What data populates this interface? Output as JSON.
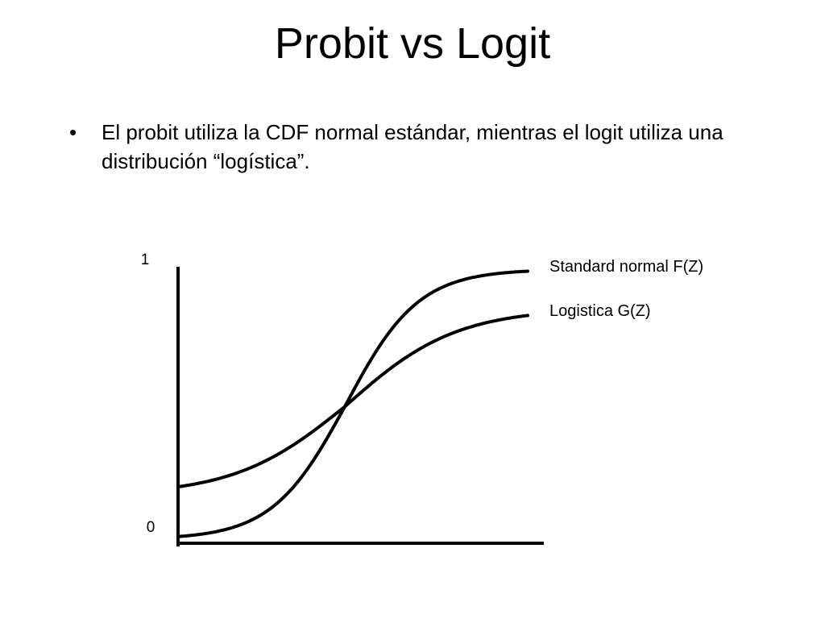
{
  "slide": {
    "title": "Probit vs Logit",
    "bullets": [
      {
        "marker": "•",
        "text": "El probit utiliza la CDF normal estándar, mientras el logit utiliza una distribución “logística”."
      }
    ]
  },
  "chart_data": {
    "type": "line",
    "title": "",
    "xlabel": "",
    "ylabel": "",
    "y_ticks": [
      "1",
      "0"
    ],
    "ylim": [
      0,
      1
    ],
    "grid": false,
    "legend": "right",
    "series": [
      {
        "name": "Standard normal F(Z)",
        "shape": "steep S-curve",
        "start_y": 0.03,
        "end_y": 0.99
      },
      {
        "name": "Logistica G(Z)",
        "shape": "gentle S-curve",
        "start_y": 0.21,
        "end_y": 0.83
      }
    ],
    "colors": {
      "axis": "#000000",
      "curves": "#000000"
    }
  }
}
